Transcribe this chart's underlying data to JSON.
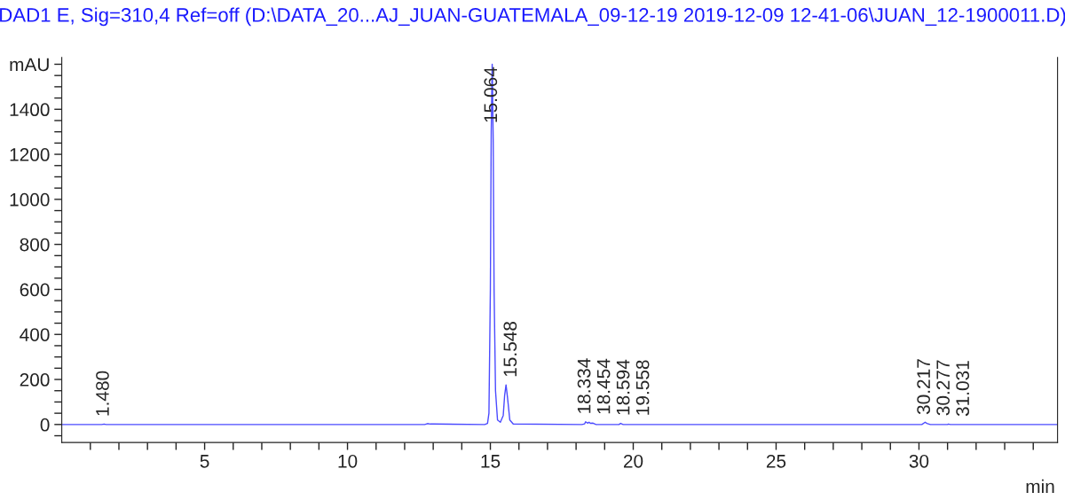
{
  "chart_data": {
    "type": "line",
    "title": "DAD1 E, Sig=310,4 Ref=off (D:\\DATA_20...AJ_JUAN-GUATEMALA_09-12-19 2019-12-09 12-41-06\\JUAN_12-1900011.D)",
    "xlabel": "min",
    "series": [
      {
        "color": "#4a4aff",
        "x": [
          0,
          1.4,
          1.48,
          1.55,
          12.7,
          12.8,
          12.9,
          13.0,
          14.8,
          14.9,
          14.95,
          15.0,
          15.03,
          15.064,
          15.1,
          15.13,
          15.18,
          15.25,
          15.35,
          15.45,
          15.5,
          15.548,
          15.6,
          15.68,
          15.8,
          18.2,
          18.3,
          18.334,
          18.4,
          18.454,
          18.5,
          18.594,
          18.7,
          19.5,
          19.558,
          19.65,
          30.1,
          30.217,
          30.277,
          30.4,
          31.0,
          31.031,
          31.1,
          34.85
        ],
        "values": [
          0,
          0,
          2,
          0,
          0,
          4,
          2,
          2,
          0,
          5,
          50,
          600,
          1300,
          1600,
          1250,
          600,
          150,
          20,
          10,
          40,
          130,
          176,
          120,
          20,
          2,
          0,
          3,
          12,
          6,
          10,
          5,
          6,
          0,
          0,
          5,
          0,
          0,
          10,
          5,
          0,
          0,
          2,
          0,
          0
        ]
      }
    ],
    "annotations": [
      {
        "text": "1.480",
        "x": 1.48,
        "y": 2
      },
      {
        "text": "15.064",
        "x": 15.064,
        "y": 1600
      },
      {
        "text": "15.548",
        "x": 15.548,
        "y": 176
      },
      {
        "text": "18.334",
        "x": 18.334,
        "y": 12
      },
      {
        "text": "18.454",
        "x": 18.454,
        "y": 10
      },
      {
        "text": "18.594",
        "x": 18.594,
        "y": 6
      },
      {
        "text": "19.558",
        "x": 19.558,
        "y": 5
      },
      {
        "text": "30.217",
        "x": 30.217,
        "y": 10
      },
      {
        "text": "30.277",
        "x": 30.277,
        "y": 5
      },
      {
        "text": "31.031",
        "x": 31.031,
        "y": 2
      }
    ],
    "xlim": [
      0,
      34.85
    ],
    "xticks": [
      {
        "value": 1,
        "label": null
      },
      {
        "value": 2,
        "label": null
      },
      {
        "value": 3,
        "label": null
      },
      {
        "value": 4,
        "label": null
      },
      5,
      {
        "value": 6,
        "label": null
      },
      {
        "value": 7,
        "label": null
      },
      {
        "value": 8,
        "label": null
      },
      {
        "value": 9,
        "label": null
      },
      10,
      {
        "value": 11,
        "label": null
      },
      {
        "value": 12,
        "label": null
      },
      {
        "value": 13,
        "label": null
      },
      {
        "value": 14,
        "label": null
      },
      15,
      {
        "value": 16,
        "label": null
      },
      {
        "value": 17,
        "label": null
      },
      {
        "value": 18,
        "label": null
      },
      {
        "value": 19,
        "label": null
      },
      20,
      {
        "value": 21,
        "label": null
      },
      {
        "value": 22,
        "label": null
      },
      {
        "value": 23,
        "label": null
      },
      {
        "value": 24,
        "label": null
      },
      25,
      {
        "value": 26,
        "label": null
      },
      {
        "value": 27,
        "label": null
      },
      {
        "value": 28,
        "label": null
      },
      {
        "value": 29,
        "label": null
      },
      30,
      {
        "value": 31,
        "label": null
      },
      {
        "value": 32,
        "label": null
      },
      {
        "value": 33,
        "label": null
      },
      {
        "value": 34,
        "label": null
      }
    ],
    "ylim": [
      -80,
      1630
    ],
    "yticks": [
      {
        "value": -50,
        "label": null
      },
      0,
      {
        "value": 50,
        "label": null
      },
      {
        "value": 100,
        "label": null
      },
      {
        "value": 150,
        "label": null
      },
      200,
      {
        "value": 250,
        "label": null
      },
      {
        "value": 300,
        "label": null
      },
      {
        "value": 350,
        "label": null
      },
      400,
      {
        "value": 450,
        "label": null
      },
      {
        "value": 500,
        "label": null
      },
      {
        "value": 550,
        "label": null
      },
      600,
      {
        "value": 650,
        "label": null
      },
      {
        "value": 700,
        "label": null
      },
      {
        "value": 750,
        "label": null
      },
      800,
      {
        "value": 850,
        "label": null
      },
      {
        "value": 900,
        "label": null
      },
      {
        "value": 950,
        "label": null
      },
      1000,
      {
        "value": 1050,
        "label": null
      },
      {
        "value": 1100,
        "label": null
      },
      {
        "value": 1150,
        "label": null
      },
      1200,
      {
        "value": 1250,
        "label": null
      },
      {
        "value": 1300,
        "label": null
      },
      {
        "value": 1350,
        "label": null
      },
      1400,
      {
        "value": 1450,
        "label": null
      },
      {
        "value": 1500,
        "label": null
      },
      {
        "value": 1550,
        "label": null
      },
      {
        "value": 1600,
        "label": "mAU"
      }
    ],
    "grid": false,
    "legend": false,
    "marker": "none",
    "line_style": "solid"
  }
}
